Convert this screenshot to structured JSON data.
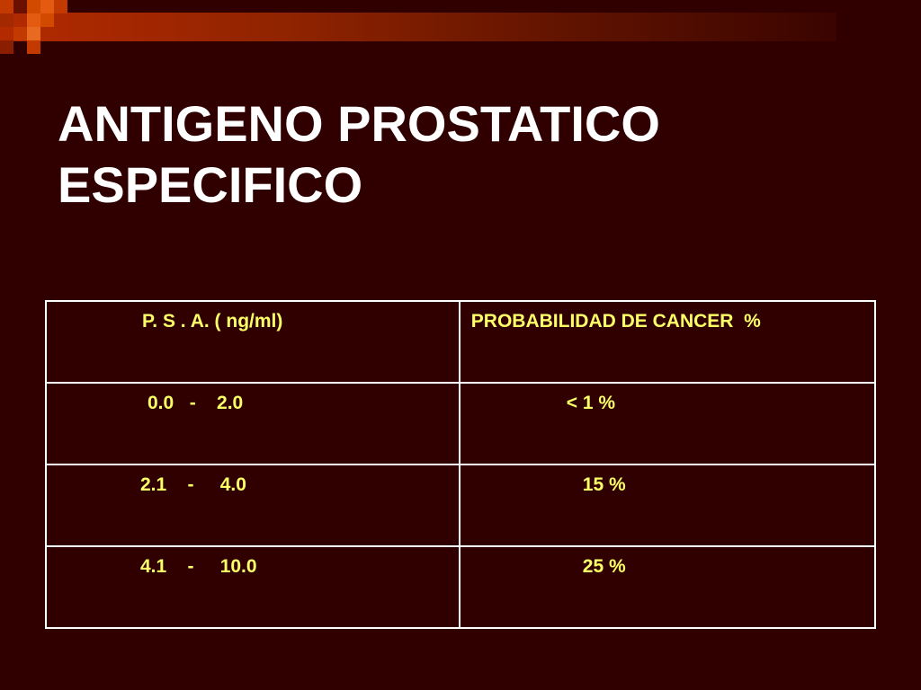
{
  "slide": {
    "title_line1": "ANTIGENO PROSTATICO",
    "title_line2": "ESPECIFICO"
  },
  "table": {
    "headers": [
      "P. S . A. ( ng/ml)",
      "PROBABILIDAD DE CANCER  %"
    ],
    "rows": [
      [
        "0.0   -    2.0",
        "< 1 %"
      ],
      [
        "2.1    -     4.0",
        "15 %"
      ],
      [
        "4.1    -     10.0",
        "25 %"
      ]
    ]
  },
  "colors": {
    "background": "#300000",
    "band": "#b32a00",
    "title": "#ffffff",
    "table_text": "#ffff66",
    "table_border": "#ffffff"
  }
}
